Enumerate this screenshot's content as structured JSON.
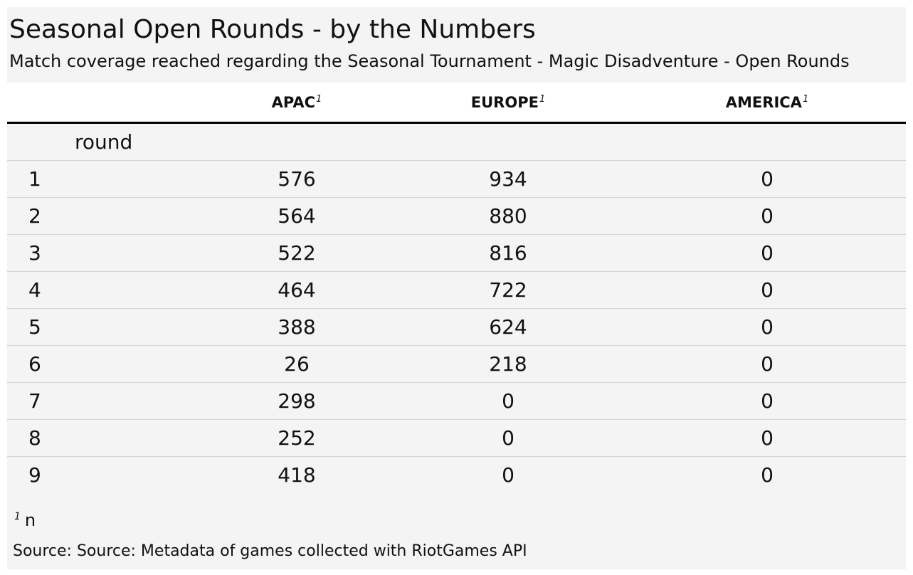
{
  "title": "Seasonal Open Rounds - by the Numbers",
  "subtitle": "Match coverage reached regarding the Seasonal Tournament - Magic Disadventure - Open Rounds",
  "columns": [
    {
      "label": "APAC",
      "mark": "1"
    },
    {
      "label": "EUROPE",
      "mark": "1"
    },
    {
      "label": "AMERICA",
      "mark": "1"
    }
  ],
  "stub_label": "round",
  "rows": [
    {
      "round": "1",
      "apac": "576",
      "europe": "934",
      "america": "0"
    },
    {
      "round": "2",
      "apac": "564",
      "europe": "880",
      "america": "0"
    },
    {
      "round": "3",
      "apac": "522",
      "europe": "816",
      "america": "0"
    },
    {
      "round": "4",
      "apac": "464",
      "europe": "722",
      "america": "0"
    },
    {
      "round": "5",
      "apac": "388",
      "europe": "624",
      "america": "0"
    },
    {
      "round": "6",
      "apac": "26",
      "europe": "218",
      "america": "0"
    },
    {
      "round": "7",
      "apac": "298",
      "europe": "0",
      "america": "0"
    },
    {
      "round": "8",
      "apac": "252",
      "europe": "0",
      "america": "0"
    },
    {
      "round": "9",
      "apac": "418",
      "europe": "0",
      "america": "0"
    }
  ],
  "footnote": {
    "mark": "1",
    "text": "n"
  },
  "source": "Source: Source: Metadata of games collected with RiotGames API"
}
